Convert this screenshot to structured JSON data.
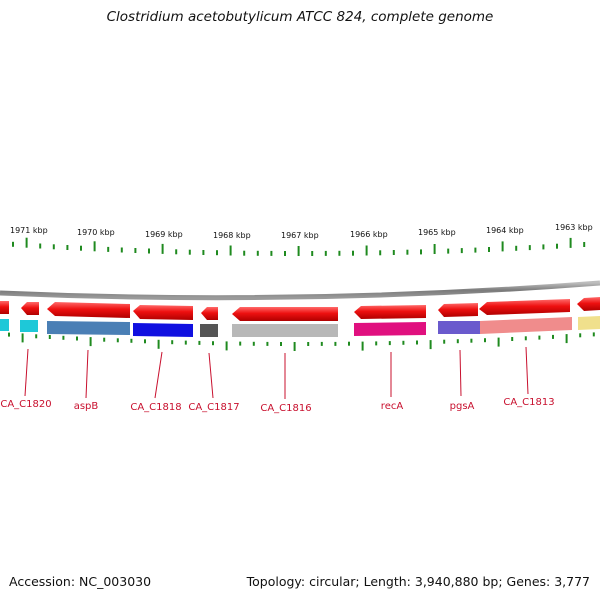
{
  "title": "Clostridium acetobutylicum ATCC 824, complete genome",
  "footer": {
    "accession": "Accession: NC_003030",
    "summary": "Topology: circular; Length: 3,940,880 bp; Genes: 3,777"
  },
  "colors": {
    "gene_forward": "#e8101a",
    "leader": "#c8102e",
    "ticks": "#1f8a1f",
    "backbone": "#8a8a8a"
  },
  "kbp_labels": [
    "1971 kbp",
    "1970 kbp",
    "1969 kbp",
    "1968 kbp",
    "1967 kbp",
    "1966 kbp",
    "1965 kbp",
    "1964 kbp",
    "1963 kbp"
  ],
  "gene_labels": [
    "CA_C1820",
    "aspB",
    "CA_C1818",
    "CA_C1817",
    "CA_C1816",
    "recA",
    "pgsA",
    "CA_C1813"
  ],
  "lower_track_colors": [
    "#1ec8d8",
    "#4a7fb5",
    "#1010e0",
    "#555555",
    "#b8b8b8",
    "#e0107f",
    "#6a5acd",
    "#f08c8c",
    "#f0e08c"
  ]
}
